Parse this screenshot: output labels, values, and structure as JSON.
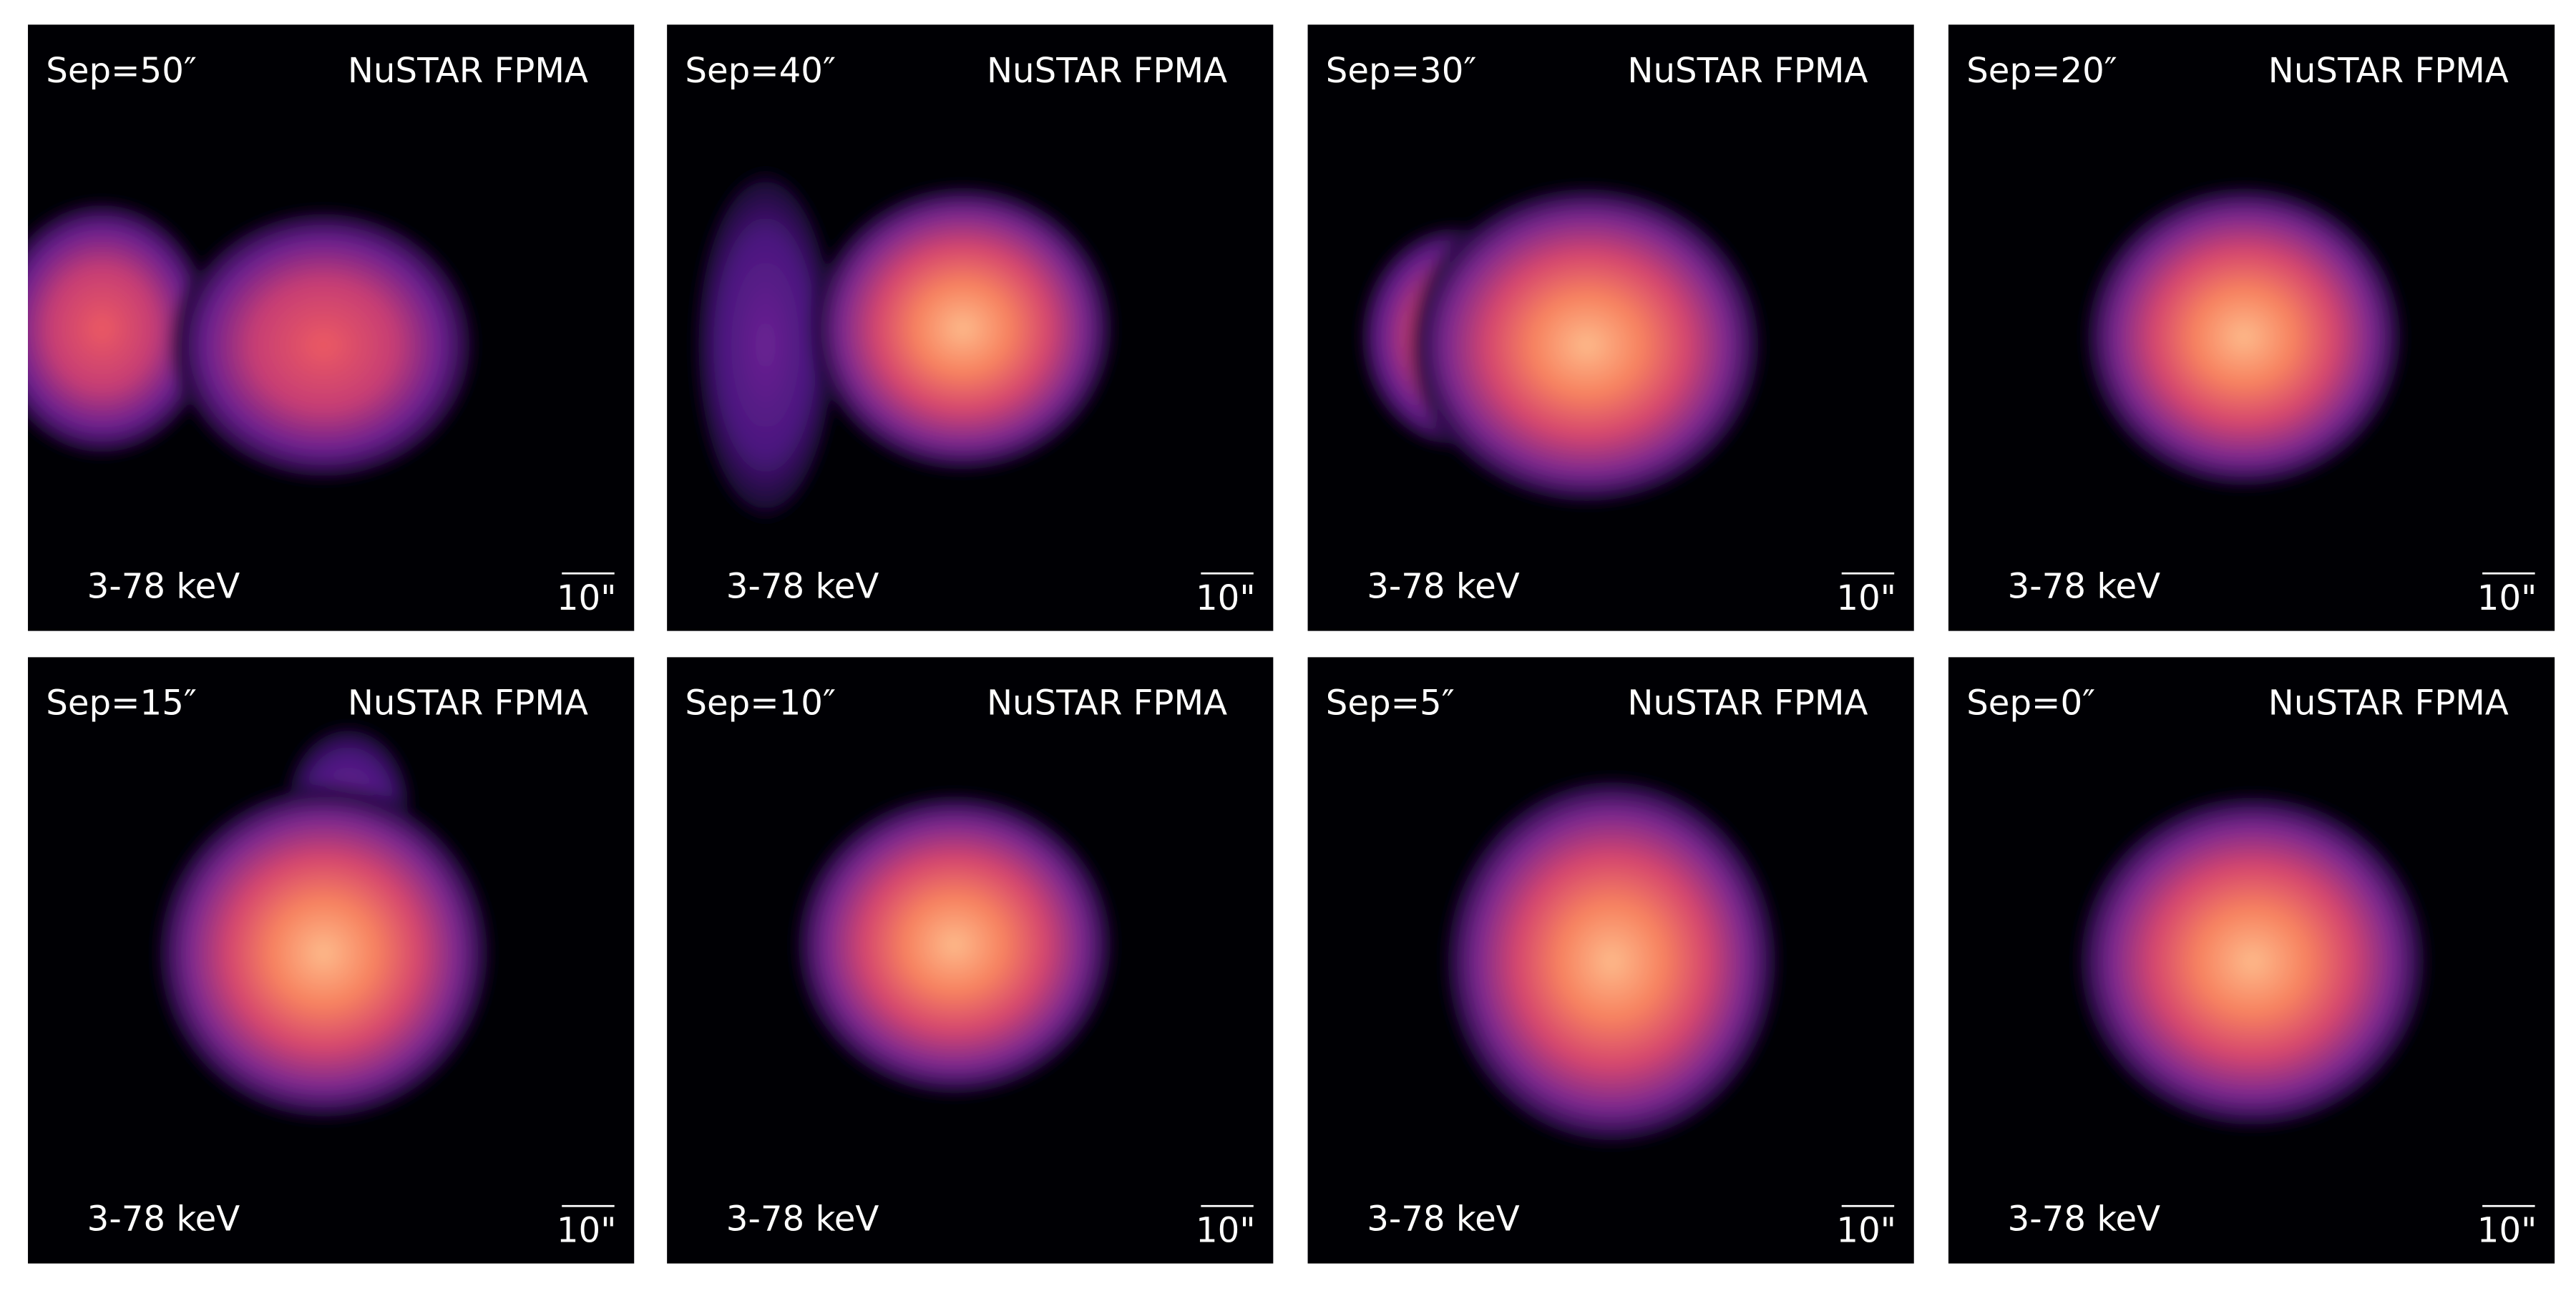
{
  "panels": [
    {
      "separation": "Sep=50″",
      "instrument": "NuSTAR FPMA",
      "energy": "3-78 keV",
      "scale": "10\""
    },
    {
      "separation": "Sep=40″",
      "instrument": "NuSTAR FPMA",
      "energy": "3-78 keV",
      "scale": "10\""
    },
    {
      "separation": "Sep=30″",
      "instrument": "NuSTAR FPMA",
      "energy": "3-78 keV",
      "scale": "10\""
    },
    {
      "separation": "Sep=20″",
      "instrument": "NuSTAR FPMA",
      "energy": "3-78 keV",
      "scale": "10\""
    },
    {
      "separation": "Sep=15″",
      "instrument": "NuSTAR FPMA",
      "energy": "3-78 keV",
      "scale": "10\""
    },
    {
      "separation": "Sep=10″",
      "instrument": "NuSTAR FPMA",
      "energy": "3-78 keV",
      "scale": "10\""
    },
    {
      "separation": "Sep=5″",
      "instrument": "NuSTAR FPMA",
      "energy": "3-78 keV",
      "scale": "10\""
    },
    {
      "separation": "Sep=0″",
      "instrument": "NuSTAR FPMA",
      "energy": "3-78 keV",
      "scale": "10\""
    }
  ]
}
